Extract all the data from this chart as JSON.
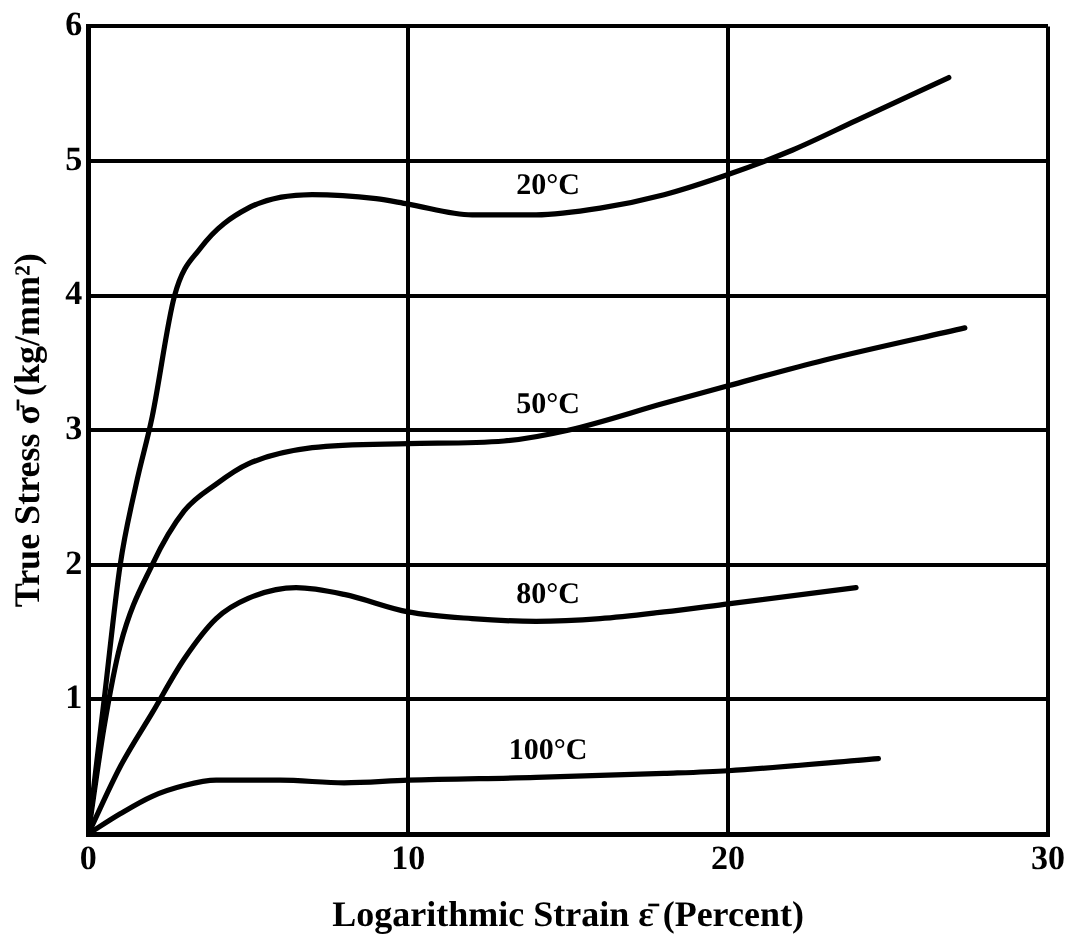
{
  "chart_data": {
    "type": "line",
    "xlabel": "Logarithmic Strain ε̄ (Percent)",
    "ylabel": "True Stress σ̄ (kg/mm²)",
    "xlim": [
      0,
      30
    ],
    "ylim": [
      0,
      6
    ],
    "xticks": [
      0,
      10,
      20,
      30
    ],
    "yticks": [
      {
        "value": 0,
        "label": null
      },
      1,
      2,
      3,
      4,
      5,
      6
    ],
    "grid": true,
    "legend": false,
    "marker": "none",
    "line_style": "solid",
    "series": [
      {
        "name": "20°C",
        "color": "#000000",
        "x": [
          0,
          0.5,
          1,
          1.5,
          2,
          2.7,
          3.5,
          5,
          7,
          9,
          10,
          12,
          14,
          16,
          18,
          20,
          22,
          24,
          26.9
        ],
        "values": [
          0,
          1,
          2,
          2.6,
          3.1,
          4,
          4.35,
          4.65,
          4.75,
          4.72,
          4.68,
          4.6,
          4.6,
          4.65,
          4.75,
          4.9,
          5.08,
          5.3,
          5.62
        ]
      },
      {
        "name": "50°C",
        "color": "#000000",
        "x": [
          0,
          0.5,
          1,
          2,
          3,
          4,
          5,
          7,
          10,
          13,
          15,
          18,
          20,
          23,
          27.4
        ],
        "values": [
          0,
          0.8,
          1.4,
          2,
          2.4,
          2.6,
          2.75,
          2.87,
          2.9,
          2.92,
          3,
          3.2,
          3.33,
          3.52,
          3.76
        ]
      },
      {
        "name": "80°C",
        "color": "#000000",
        "x": [
          0,
          1,
          2,
          3,
          4,
          5,
          6.5,
          8,
          10,
          12,
          14,
          16,
          18,
          20,
          24
        ],
        "values": [
          0,
          0.5,
          0.9,
          1.3,
          1.6,
          1.75,
          1.83,
          1.78,
          1.65,
          1.6,
          1.58,
          1.6,
          1.65,
          1.71,
          1.83
        ]
      },
      {
        "name": "100°C",
        "color": "#000000",
        "x": [
          0,
          1,
          2,
          3,
          4,
          6,
          8,
          10,
          14,
          18,
          20,
          24.7
        ],
        "values": [
          0,
          0.15,
          0.28,
          0.36,
          0.4,
          0.4,
          0.38,
          0.4,
          0.42,
          0.45,
          0.47,
          0.56
        ]
      }
    ]
  }
}
